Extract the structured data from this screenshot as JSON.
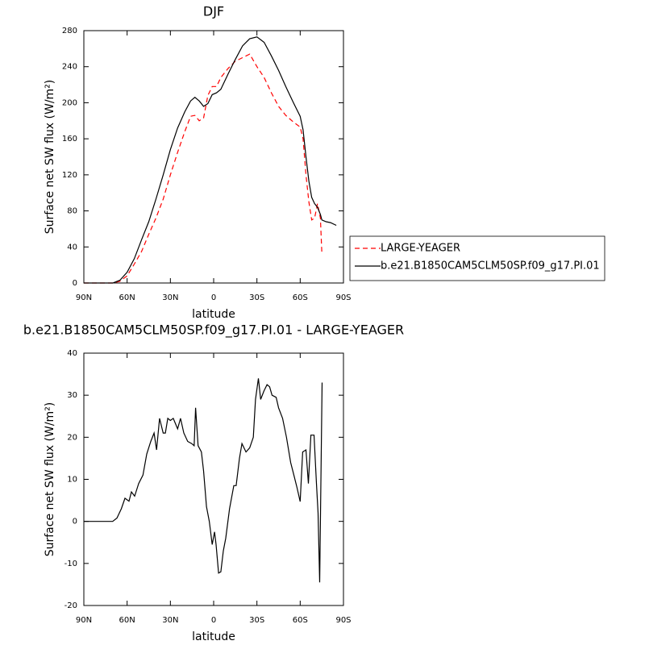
{
  "chart_data": [
    {
      "type": "line",
      "title": "DJF",
      "xlabel": "latitude",
      "ylabel": "Surface net SW flux (W/m²)",
      "x": [
        90,
        80,
        70,
        65,
        60,
        55,
        50,
        45,
        40,
        35,
        30,
        25,
        20,
        16,
        13,
        10,
        7,
        4,
        1,
        -2,
        -5,
        -10,
        -15,
        -20,
        -25,
        -30,
        -35,
        -40,
        -45,
        -50,
        -55,
        -60,
        -62,
        -64,
        -66,
        -68,
        -70,
        -72,
        -74,
        -75,
        -78,
        -81,
        -85
      ],
      "series": [
        {
          "name": "LARGE-YEAGER",
          "color": "#ff0000",
          "style": "dashed",
          "values": [
            0,
            0,
            0,
            2,
            8,
            21,
            35,
            54,
            72,
            93,
            120,
            145,
            168,
            185,
            186,
            180,
            183,
            208,
            218,
            218,
            228,
            238,
            246,
            250,
            254,
            240,
            228,
            211,
            196,
            186,
            179,
            173,
            160,
            120,
            90,
            70,
            72,
            88,
            72,
            33,
            null,
            null,
            null
          ]
        },
        {
          "name": "b.e21.B1850CAM5CLM50SP.f09_g17.PI.01",
          "color": "#000000",
          "style": "solid",
          "values": [
            0,
            0,
            0,
            3,
            12,
            27,
            48,
            68,
            93,
            120,
            148,
            172,
            190,
            202,
            206,
            202,
            196,
            199,
            209,
            211,
            215,
            232,
            248,
            263,
            271,
            273,
            267,
            252,
            236,
            218,
            201,
            185,
            170,
            140,
            113,
            95,
            88,
            84,
            76,
            70,
            68,
            67,
            64
          ]
        }
      ],
      "xlim": [
        90,
        -90
      ],
      "xticks": [
        {
          "value": 90,
          "label": "90N"
        },
        {
          "value": 60,
          "label": "60N"
        },
        {
          "value": 30,
          "label": "30N"
        },
        0,
        {
          "value": -30,
          "label": "30S"
        },
        {
          "value": -60,
          "label": "60S"
        },
        {
          "value": -90,
          "label": "90S"
        }
      ],
      "ylim": [
        0,
        280
      ],
      "yticks": [
        0,
        40,
        80,
        120,
        160,
        200,
        240,
        280
      ],
      "legend": "right"
    },
    {
      "type": "line",
      "title": "b.e21.B1850CAM5CLM50SP.f09_g17.PI.01 - LARGE-YEAGER",
      "xlabel": "latitude",
      "ylabel": "Surface net SW flux (W/m²)",
      "x": [
        90,
        80,
        70,
        67,
        64,
        61.5,
        58.7,
        57,
        54.8,
        52,
        49,
        46.4,
        43.6,
        41.3,
        39.6,
        37.5,
        35,
        33.5,
        31.8,
        30,
        28,
        25,
        23,
        20.7,
        18,
        15.2,
        13.5,
        12.5,
        10.8,
        8.5,
        7,
        5,
        3,
        1,
        -0.6,
        -1.7,
        -3.4,
        -5,
        -6.7,
        -8.4,
        -11,
        -14,
        -15.6,
        -17.9,
        -19.6,
        -22.4,
        -25,
        -27.5,
        -29,
        -31,
        -32.6,
        -34.9,
        -37,
        -38.8,
        -40.5,
        -43.3,
        -45,
        -47.8,
        -50.5,
        -53.4,
        -55.6,
        -57.8,
        -60,
        -61.7,
        -64,
        -65.7,
        -67.4,
        -69.6,
        -71.3,
        -72.4,
        -73.5,
        -75.2
      ],
      "series": [
        {
          "color": "#000000",
          "style": "solid",
          "values": [
            0,
            0,
            0,
            0.8,
            3,
            5.5,
            4.8,
            7,
            6,
            9,
            11,
            16,
            19,
            21,
            17,
            24.5,
            21,
            21,
            24.5,
            24,
            24.5,
            22,
            24.5,
            21,
            19,
            18.5,
            18,
            27,
            18,
            16.5,
            12,
            3.5,
            0,
            -5.5,
            -2.5,
            -5.5,
            -12.3,
            -12,
            -7,
            -4,
            3,
            8.5,
            8.5,
            15,
            18.5,
            16.5,
            17.5,
            20,
            29,
            34,
            29,
            31,
            32.5,
            32,
            30,
            29.5,
            27,
            24.5,
            20,
            14,
            11,
            8,
            4.7,
            16.5,
            17,
            9,
            20.5,
            20.5,
            9,
            2,
            -14.5,
            33
          ]
        }
      ],
      "xlim": [
        90,
        -90
      ],
      "xticks": [
        {
          "value": 90,
          "label": "90N"
        },
        {
          "value": 60,
          "label": "60N"
        },
        {
          "value": 30,
          "label": "30N"
        },
        0,
        {
          "value": -30,
          "label": "30S"
        },
        {
          "value": -60,
          "label": "60S"
        },
        {
          "value": -90,
          "label": "90S"
        }
      ],
      "ylim": [
        -20,
        40
      ],
      "yticks": [
        -20,
        -10,
        0,
        10,
        20,
        30,
        40
      ]
    }
  ]
}
